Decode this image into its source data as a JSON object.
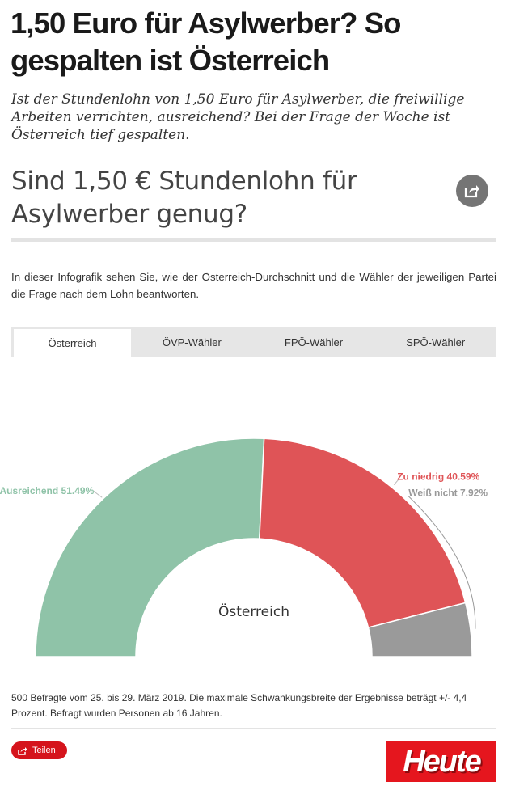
{
  "article": {
    "headline": "1,50 Euro für Asylwerber? So gespalten ist Österreich",
    "lead": "Ist der Stundenlohn von 1,50 Euro für Asylwerber, die freiwillige Arbeiten verrichten, ausreichend? Bei der Frage der Woche ist Österreich tief gespalten."
  },
  "infographic": {
    "question": "Sind 1,50 € Stundenlohn für Asylwerber genug?",
    "intro": "In dieser Infografik sehen Sie, wie der Österreich-Durchschnitt und die Wähler der jeweiligen Partei die Frage nach dem Lohn beantworten.",
    "tabs": [
      {
        "label": "Österreich",
        "active": true
      },
      {
        "label": "ÖVP-Wähler",
        "active": false
      },
      {
        "label": "FPÖ-Wähler",
        "active": false
      },
      {
        "label": "SPÖ-Wähler",
        "active": false
      }
    ],
    "footnote": "500 Befragte vom 25. bis 29. März 2019. Die maximale Schwankungsbreite der Ergebnisse beträgt +/- 4,4 Prozent. Befragt wurden Personen ab 16 Jahren.",
    "share_label": "Teilen"
  },
  "logo": {
    "text": "Heute"
  },
  "chart_data": {
    "type": "pie",
    "variant": "semicircle-donut",
    "center_label": "Österreich",
    "unit": "%",
    "slices": [
      {
        "label": "Ausreichend",
        "value": 51.49,
        "display": "Ausreichend 51.49%",
        "color": "#8fc3a8",
        "label_color": "#8fc3a8"
      },
      {
        "label": "Zu niedrig",
        "value": 40.59,
        "display": "Zu niedrig 40.59%",
        "color": "#df5457",
        "label_color": "#df5457"
      },
      {
        "label": "Weiß nicht",
        "value": 7.92,
        "display": "Weiß nicht 7.92%",
        "color": "#9a9a9a",
        "label_color": "#999999"
      }
    ]
  }
}
